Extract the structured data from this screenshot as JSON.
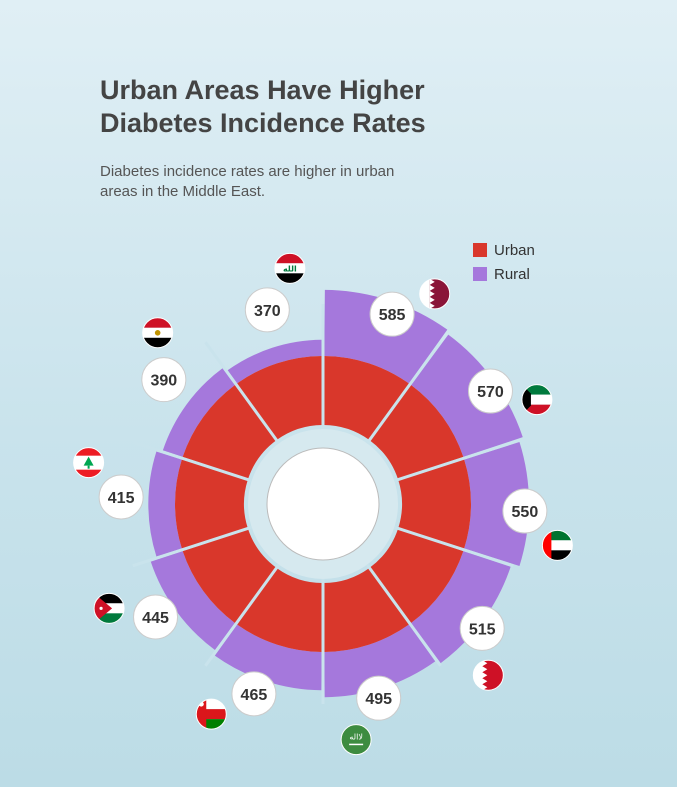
{
  "title": "Urban Areas Have Higher Diabetes Incidence Rates",
  "subtitle": "Diabetes incidence rates are higher in urban areas in the Middle East.",
  "colors": {
    "urban": "#d9372b",
    "rural": "#a578dc",
    "gap": "#c9e3ec",
    "label_bg": "#ffffff"
  },
  "chart_data": {
    "type": "radial-bar",
    "title": "Urban Areas Have Higher Diabetes Incidence Rates",
    "legend": {
      "position": "top-right",
      "entries": [
        "Urban",
        "Rural"
      ]
    },
    "series": [
      {
        "name": "Urban"
      },
      {
        "name": "Rural"
      }
    ],
    "categories": [
      "Qatar",
      "Kuwait",
      "UAE",
      "Bahrain",
      "Saudi Arabia",
      "Oman",
      "Jordan",
      "Lebanon",
      "Egypt",
      "Iraq"
    ],
    "flag_icons": [
      "qatar-flag-icon",
      "kuwait-flag-icon",
      "uae-flag-icon",
      "bahrain-flag-icon",
      "saudi-arabia-flag-icon",
      "oman-flag-icon",
      "jordan-flag-icon",
      "lebanon-flag-icon",
      "egypt-flag-icon",
      "iraq-flag-icon"
    ],
    "values": [
      585,
      570,
      550,
      515,
      495,
      465,
      445,
      415,
      390,
      370
    ],
    "value_labels": [
      "585",
      "570",
      "550",
      "515",
      "495",
      "465",
      "445",
      "415",
      "390",
      "370"
    ],
    "grid": false
  }
}
